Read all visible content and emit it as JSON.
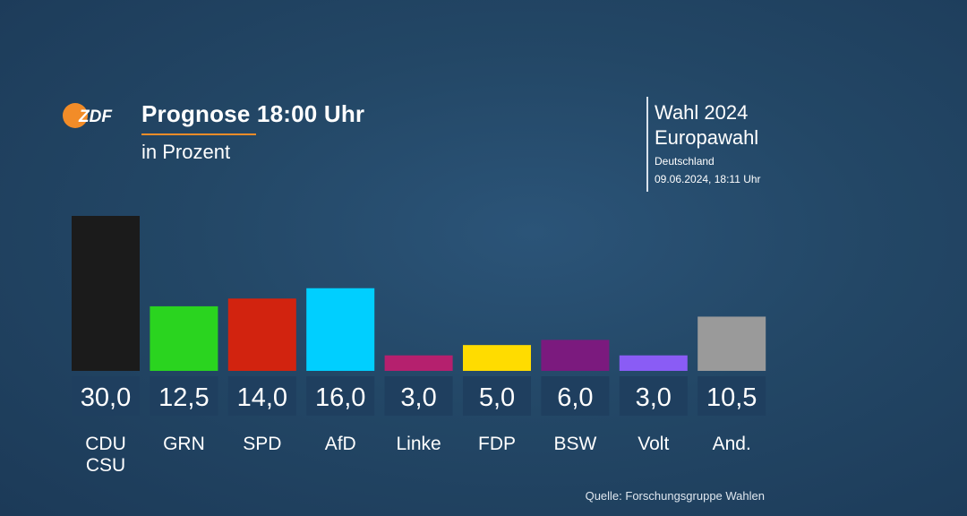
{
  "header": {
    "logo_text": "ZDF",
    "title": "Prognose 18:00 Uhr",
    "subtitle": "in Prozent"
  },
  "info": {
    "line1": "Wahl 2024",
    "line2": "Europawahl",
    "region": "Deutschland",
    "timestamp": "09.06.2024, 18:11 Uhr"
  },
  "source": "Quelle: Forschungsgruppe Wahlen",
  "colors": {
    "accent": "#f28c28",
    "value_box": "#1f3f5f"
  },
  "chart_data": {
    "type": "bar",
    "title": "Prognose 18:00 Uhr",
    "subtitle": "in Prozent",
    "xlabel": "",
    "ylabel": "",
    "ylim": [
      0,
      30
    ],
    "grid": false,
    "categories": [
      "CDU\nCSU",
      "GRN",
      "SPD",
      "AfD",
      "Linke",
      "FDP",
      "BSW",
      "Volt",
      "And."
    ],
    "values": [
      30.0,
      12.5,
      14.0,
      16.0,
      3.0,
      5.0,
      6.0,
      3.0,
      10.5
    ],
    "value_labels": [
      "30,0",
      "12,5",
      "14,0",
      "16,0",
      "3,0",
      "5,0",
      "6,0",
      "3,0",
      "10,5"
    ],
    "bar_colors": [
      "#1b1b1b",
      "#2ad41f",
      "#d2230f",
      "#00cfff",
      "#b5206e",
      "#ffdc00",
      "#7b1a7e",
      "#8a5cf5",
      "#9a9a9a"
    ]
  }
}
